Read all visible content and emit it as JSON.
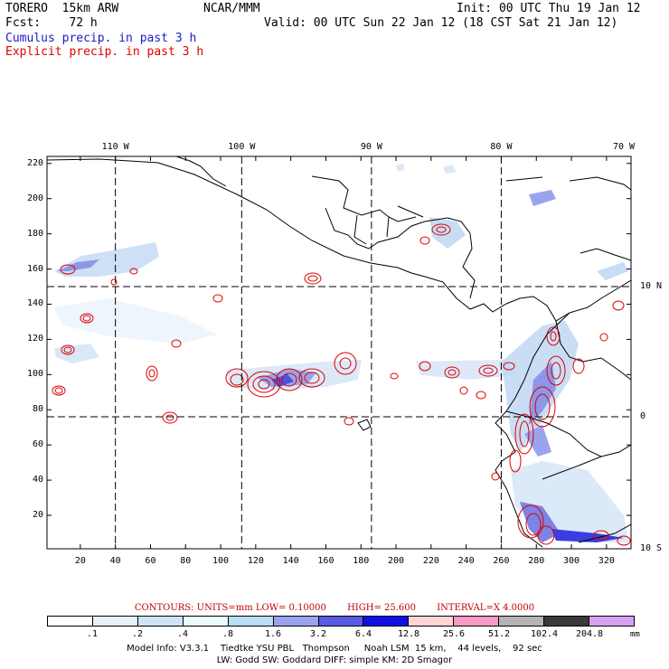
{
  "header": {
    "model": "TORERO  15km ARW",
    "center": "NCAR/MMM",
    "init": "Init: 00 UTC Thu 19 Jan 12",
    "fcst": "Fcst:    72 h",
    "valid": "Valid: 00 UTC Sun 22 Jan 12 (18 CST Sat 21 Jan 12)",
    "field1": "Cumulus precip. in past 3 h",
    "field2": "Explicit precip. in past 3 h"
  },
  "colors": {
    "field1": "#1a1acc",
    "field2": "#e00000",
    "coast": "#000000",
    "contour": "#e00000"
  },
  "map": {
    "x_ticks": [
      "20",
      "40",
      "60",
      "80",
      "100",
      "120",
      "140",
      "160",
      "180",
      "200",
      "220",
      "240",
      "260",
      "280",
      "300",
      "320"
    ],
    "x_tick_values": [
      20,
      40,
      60,
      80,
      100,
      120,
      140,
      160,
      180,
      200,
      220,
      240,
      260,
      280,
      300,
      320
    ],
    "y_ticks": [
      "20",
      "40",
      "60",
      "80",
      "100",
      "120",
      "140",
      "160",
      "180",
      "200",
      "220"
    ],
    "y_tick_values": [
      20,
      40,
      60,
      80,
      100,
      120,
      140,
      160,
      180,
      200,
      220
    ],
    "x_range": [
      1,
      334
    ],
    "y_range": [
      1,
      224
    ],
    "lon_labels": [
      "110 W",
      "100 W",
      "90 W",
      "80 W",
      "70 W"
    ],
    "lon_grid_x": [
      40,
      112,
      186,
      260
    ],
    "lat_labels": [
      "10 N",
      "0",
      "10 S"
    ],
    "lat_grid_y": [
      150,
      76
    ]
  },
  "legend": {
    "contours": "CONTOURS:  UNITS=mm  LOW= 0.10000",
    "high": "HIGH=   25.600",
    "interval": "INTERVAL=X  4.0000",
    "scale_labels": [
      ".1",
      ".2",
      ".4",
      ".8",
      "1.6",
      "3.2",
      "6.4",
      "12.8",
      "25.6",
      "51.2",
      "102.4",
      "204.8"
    ],
    "scale_colors": [
      "#ffffff",
      "#e6f0fb",
      "#cfe4f7",
      "#e9fbfb",
      "#bcdcf2",
      "#9aa4ee",
      "#5a5ae6",
      "#1010e6",
      "#ffd4d4",
      "#f89ac4",
      "#b4b4b4",
      "#3a3a3a",
      "#d8a0f0"
    ],
    "units": "mm"
  },
  "footer": {
    "line1": "Model Info: V3.3.1    Tiedtke YSU PBL   Thompson     Noah LSM  15 km,    44 levels,    92 sec",
    "line2": "LW: Godd SW: Goddard DIFF: simple KM: 2D Smagor"
  }
}
